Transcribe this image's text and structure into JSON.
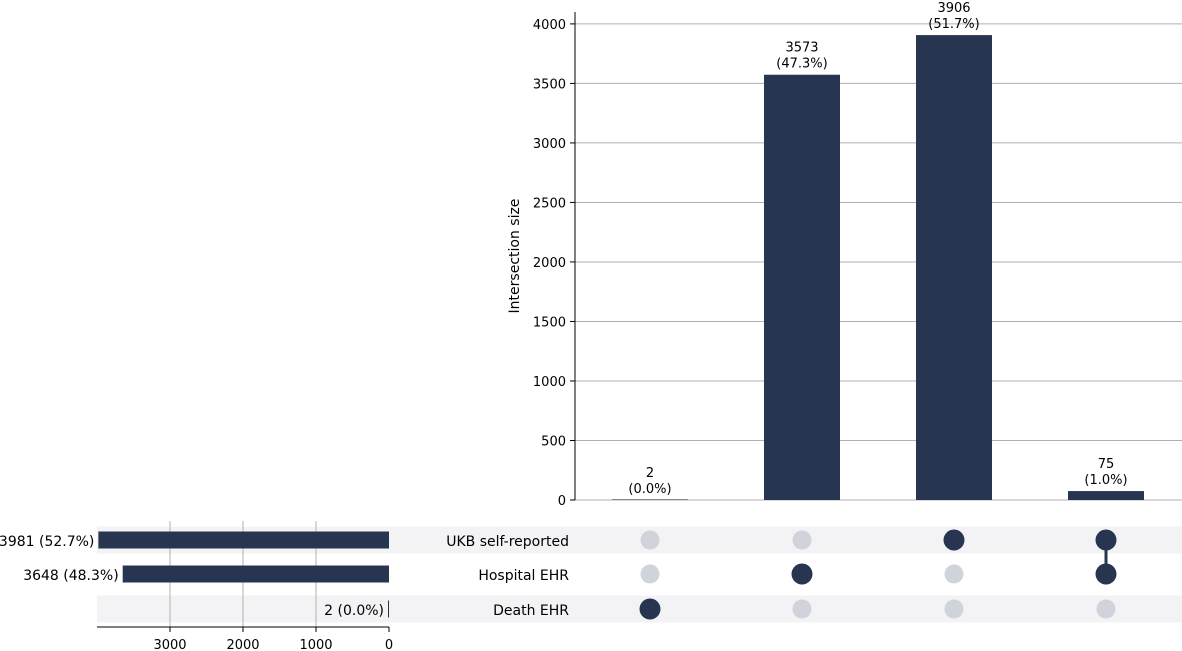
{
  "chart_data": {
    "type": "bar",
    "subtype": "upset",
    "ylabel": "Intersection size",
    "ylim": [
      0,
      4100
    ],
    "yticks": [
      0,
      500,
      1000,
      1500,
      2000,
      2500,
      3000,
      3500,
      4000
    ],
    "grid": true,
    "sets": [
      "UKB self-reported",
      "Hospital EHR",
      "Death EHR"
    ],
    "set_sizes": [
      3981,
      3648,
      2
    ],
    "set_size_labels": [
      "3981 (52.7%)",
      "3648 (48.3%)",
      "2 (0.0%)"
    ],
    "set_size_ticks": [
      3000,
      2000,
      1000,
      0
    ],
    "set_size_xlim": [
      0,
      4000
    ],
    "intersections": [
      {
        "members": [
          "Death EHR"
        ],
        "value": 2,
        "label_count": "2",
        "label_pct": "(0.0%)"
      },
      {
        "members": [
          "Hospital EHR"
        ],
        "value": 3573,
        "label_count": "3573",
        "label_pct": "(47.3%)"
      },
      {
        "members": [
          "UKB self-reported"
        ],
        "value": 3906,
        "label_count": "3906",
        "label_pct": "(51.7%)"
      },
      {
        "members": [
          "UKB self-reported",
          "Hospital EHR"
        ],
        "value": 75,
        "label_count": "75",
        "label_pct": "(1.0%)"
      }
    ],
    "colors": {
      "bar": "#273550",
      "dot_active": "#273550",
      "dot_inactive": "#d0d3d9",
      "row_stripe": "#f3f3f5",
      "grid": "#b0b0b0"
    }
  }
}
